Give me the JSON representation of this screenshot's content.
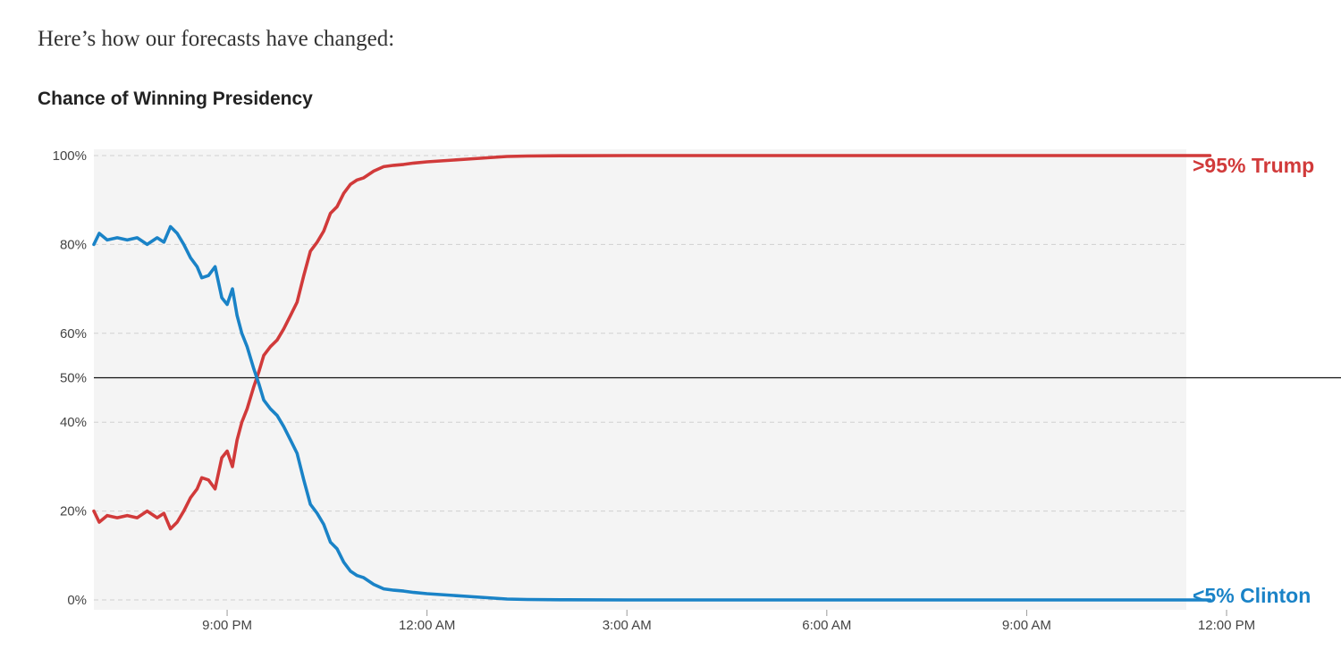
{
  "intro_text": "Here’s how our forecasts have changed:",
  "chart_data": {
    "type": "line",
    "title": "Chance of Winning Presidency",
    "xlabel": "",
    "ylabel": "",
    "x_unit": "hours after 7:00 PM",
    "xlim": [
      0,
      16.75
    ],
    "ylim": [
      0,
      100
    ],
    "y_ticks": [
      {
        "value": 0,
        "label": "0%"
      },
      {
        "value": 20,
        "label": "20%"
      },
      {
        "value": 40,
        "label": "40%"
      },
      {
        "value": 50,
        "label": "50%"
      },
      {
        "value": 60,
        "label": "60%"
      },
      {
        "value": 80,
        "label": "80%"
      },
      {
        "value": 100,
        "label": "100%"
      }
    ],
    "x_ticks": [
      {
        "value": 2,
        "label": "9:00 PM"
      },
      {
        "value": 5,
        "label": "12:00 AM"
      },
      {
        "value": 8,
        "label": "3:00 AM"
      },
      {
        "value": 11,
        "label": "6:00 AM"
      },
      {
        "value": 14,
        "label": "9:00 AM"
      },
      {
        "value": 17,
        "label": "12:00 PM"
      }
    ],
    "grid": true,
    "reference_line": 50,
    "shaded_until": 16.75,
    "series": [
      {
        "name": "Trump",
        "end_label": ">95% Trump",
        "color": "#d13a3a",
        "x": [
          0,
          0.08,
          0.2,
          0.35,
          0.5,
          0.65,
          0.8,
          0.95,
          1.05,
          1.15,
          1.25,
          1.35,
          1.45,
          1.55,
          1.62,
          1.72,
          1.82,
          1.92,
          2.0,
          2.08,
          2.15,
          2.22,
          2.3,
          2.4,
          2.48,
          2.55,
          2.65,
          2.75,
          2.85,
          2.95,
          3.05,
          3.15,
          3.25,
          3.35,
          3.45,
          3.55,
          3.65,
          3.75,
          3.85,
          3.95,
          4.05,
          4.2,
          4.35,
          4.5,
          4.65,
          4.8,
          5.0,
          5.2,
          5.4,
          5.6,
          5.8,
          6.0,
          6.2,
          6.5,
          7.0,
          8.0,
          10.0,
          12.0,
          14.0,
          16.75
        ],
        "values": [
          20,
          17.5,
          19,
          18.5,
          19,
          18.5,
          20,
          18.5,
          19.5,
          16,
          17.5,
          20,
          23,
          25,
          27.5,
          27,
          25,
          32,
          33.5,
          30,
          36,
          40,
          43,
          48,
          51.5,
          55,
          57,
          58.5,
          61,
          64,
          67,
          73,
          78.5,
          80.5,
          83,
          87,
          88.5,
          91.5,
          93.5,
          94.5,
          95,
          96.5,
          97.5,
          97.8,
          98,
          98.3,
          98.6,
          98.8,
          99,
          99.2,
          99.4,
          99.6,
          99.8,
          99.9,
          99.95,
          100,
          100,
          100,
          100,
          100
        ]
      },
      {
        "name": "Clinton",
        "end_label": "<5% Clinton",
        "color": "#1a83c7",
        "x": [
          0,
          0.08,
          0.2,
          0.35,
          0.5,
          0.65,
          0.8,
          0.95,
          1.05,
          1.15,
          1.25,
          1.35,
          1.45,
          1.55,
          1.62,
          1.72,
          1.82,
          1.92,
          2.0,
          2.08,
          2.15,
          2.22,
          2.3,
          2.4,
          2.48,
          2.55,
          2.65,
          2.75,
          2.85,
          2.95,
          3.05,
          3.15,
          3.25,
          3.35,
          3.45,
          3.55,
          3.65,
          3.75,
          3.85,
          3.95,
          4.05,
          4.2,
          4.35,
          4.5,
          4.65,
          4.8,
          5.0,
          5.2,
          5.4,
          5.6,
          5.8,
          6.0,
          6.2,
          6.5,
          7.0,
          8.0,
          10.0,
          12.0,
          14.0,
          16.75
        ],
        "values": [
          80,
          82.5,
          81,
          81.5,
          81,
          81.5,
          80,
          81.5,
          80.5,
          84,
          82.5,
          80,
          77,
          75,
          72.5,
          73,
          75,
          68,
          66.5,
          70,
          64,
          60,
          57,
          52,
          48.5,
          45,
          43,
          41.5,
          39,
          36,
          33,
          27,
          21.5,
          19.5,
          17,
          13,
          11.5,
          8.5,
          6.5,
          5.5,
          5,
          3.5,
          2.5,
          2.2,
          2,
          1.7,
          1.4,
          1.2,
          1,
          0.8,
          0.6,
          0.4,
          0.2,
          0.1,
          0.05,
          0,
          0,
          0,
          0,
          0
        ]
      }
    ]
  }
}
